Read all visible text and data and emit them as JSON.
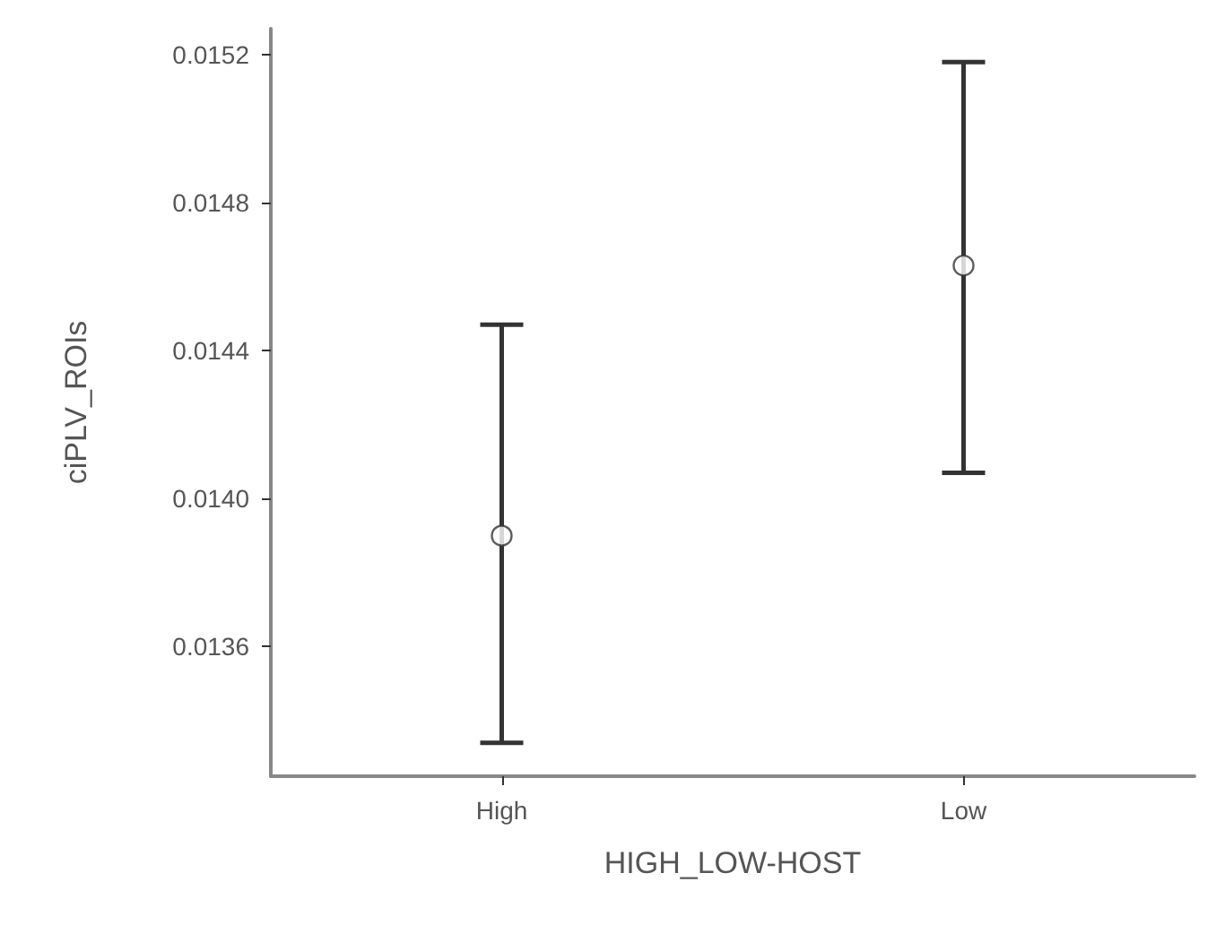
{
  "chart_data": {
    "type": "scatter",
    "xlabel": "HIGH_LOW-HOST",
    "ylabel": "ciPLV_ROIs",
    "categories": [
      "High",
      "Low"
    ],
    "values": [
      0.0139,
      0.01463
    ],
    "errors": [
      [
        0.01334,
        0.01447
      ],
      [
        0.01407,
        0.01518
      ]
    ],
    "color": "#ffffff",
    "marker": "circle",
    "grid": false,
    "ylim": [
      0.01325,
      0.01527
    ],
    "yticks": [
      {
        "value": 0.0136,
        "label": "0.0136"
      },
      {
        "value": 0.014,
        "label": "0.0140"
      },
      {
        "value": 0.0144,
        "label": "0.0144"
      },
      {
        "value": 0.0148,
        "label": "0.0148"
      },
      {
        "value": 0.0152,
        "label": "0.0152"
      }
    ]
  }
}
